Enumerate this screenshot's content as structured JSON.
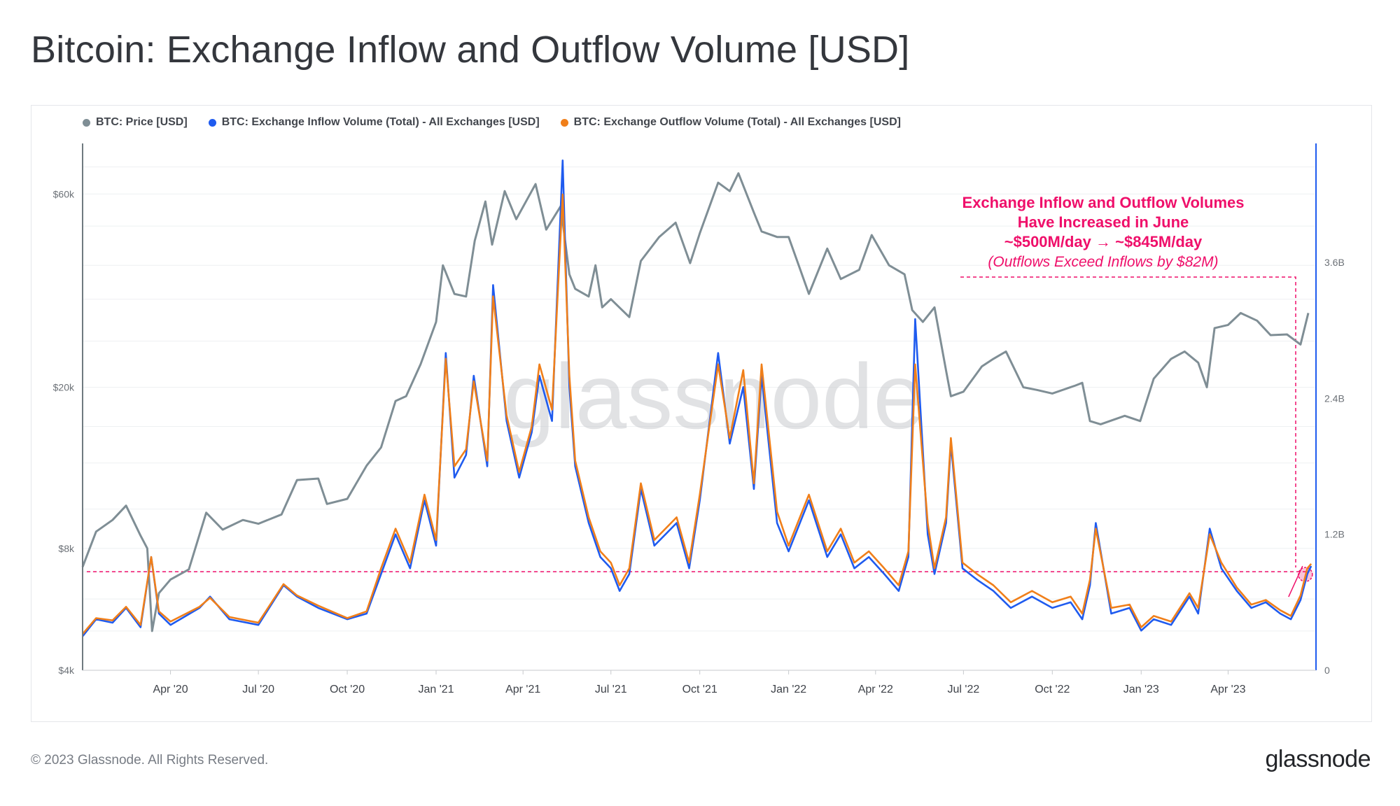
{
  "title": "Bitcoin: Exchange Inflow and Outflow Volume [USD]",
  "legend": [
    {
      "label": "BTC: Price [USD]",
      "color": "#7f8e95"
    },
    {
      "label": "BTC: Exchange Inflow Volume (Total) - All Exchanges [USD]",
      "color": "#1f5bef"
    },
    {
      "label": "BTC: Exchange Outflow Volume (Total) - All Exchanges [USD]",
      "color": "#f07f1a"
    }
  ],
  "annotation": {
    "line1": "Exchange Inflow and Outflow Volumes",
    "line2": "Have Increased in June",
    "line3": "~$500M/day → ~$845M/day",
    "line4": "(Outflows Exceed Inflows by $82M)",
    "color": "#ef0f6a"
  },
  "watermark": "glassnode",
  "footer": {
    "copyright": "© 2023 Glassnode. All Rights Reserved.",
    "logo": "glassnode"
  },
  "chart_data": {
    "type": "line",
    "x_type": "date",
    "xlim": [
      "2020-01-01",
      "2023-07-01"
    ],
    "x_ticks": [
      "Apr '20",
      "Jul '20",
      "Oct '20",
      "Jan '21",
      "Apr '21",
      "Jul '21",
      "Oct '21",
      "Jan '22",
      "Apr '22",
      "Jul '22",
      "Oct '22",
      "Jan '23",
      "Apr '23"
    ],
    "x_tick_dates": [
      "2020-04-01",
      "2020-07-01",
      "2020-10-01",
      "2021-01-01",
      "2021-04-01",
      "2021-07-01",
      "2021-10-01",
      "2022-01-01",
      "2022-04-01",
      "2022-07-01",
      "2022-10-01",
      "2023-01-01",
      "2023-04-01"
    ],
    "y_left": {
      "scale": "log",
      "ticks": [
        "$4k",
        "$8k",
        "$20k",
        "$60k"
      ],
      "tick_values": [
        4000,
        8000,
        20000,
        60000
      ],
      "range": [
        4000,
        80000
      ]
    },
    "y_right": {
      "scale": "linear",
      "ticks": [
        "0",
        "1.2B",
        "2.4B",
        "3.6B"
      ],
      "tick_values": [
        0,
        1200000000,
        2400000000,
        3600000000
      ],
      "range": [
        0,
        4650000000
      ]
    },
    "grid": true,
    "legend_position": "top-left",
    "reference_line_right": 870000000,
    "series": [
      {
        "name": "BTC: Price [USD]",
        "axis": "left",
        "color": "#7f8e95",
        "x": [
          "2020-01-01",
          "2020-01-15",
          "2020-02-01",
          "2020-02-15",
          "2020-03-01",
          "2020-03-08",
          "2020-03-13",
          "2020-03-20",
          "2020-04-01",
          "2020-04-20",
          "2020-05-08",
          "2020-05-25",
          "2020-06-15",
          "2020-07-01",
          "2020-07-25",
          "2020-08-10",
          "2020-09-01",
          "2020-09-10",
          "2020-10-01",
          "2020-10-21",
          "2020-11-05",
          "2020-11-20",
          "2020-12-01",
          "2020-12-16",
          "2021-01-01",
          "2021-01-08",
          "2021-01-20",
          "2021-02-01",
          "2021-02-10",
          "2021-02-21",
          "2021-02-28",
          "2021-03-13",
          "2021-03-25",
          "2021-04-14",
          "2021-04-25",
          "2021-05-10",
          "2021-05-19",
          "2021-05-25",
          "2021-06-08",
          "2021-06-15",
          "2021-06-22",
          "2021-07-01",
          "2021-07-20",
          "2021-08-01",
          "2021-08-20",
          "2021-09-06",
          "2021-09-21",
          "2021-10-01",
          "2021-10-20",
          "2021-11-01",
          "2021-11-10",
          "2021-11-26",
          "2021-12-04",
          "2021-12-20",
          "2022-01-01",
          "2022-01-22",
          "2022-02-10",
          "2022-02-24",
          "2022-03-15",
          "2022-03-28",
          "2022-04-15",
          "2022-05-01",
          "2022-05-09",
          "2022-05-20",
          "2022-06-01",
          "2022-06-13",
          "2022-06-18",
          "2022-07-01",
          "2022-07-20",
          "2022-08-01",
          "2022-08-14",
          "2022-09-01",
          "2022-09-15",
          "2022-10-01",
          "2022-10-25",
          "2022-11-01",
          "2022-11-09",
          "2022-11-20",
          "2022-12-15",
          "2022-12-31",
          "2023-01-14",
          "2023-02-01",
          "2023-02-15",
          "2023-03-01",
          "2023-03-10",
          "2023-03-18",
          "2023-04-01",
          "2023-04-14",
          "2023-05-01",
          "2023-05-15",
          "2023-06-01",
          "2023-06-15",
          "2023-06-23"
        ],
        "values": [
          7200,
          8800,
          9400,
          10200,
          8600,
          8000,
          5000,
          6200,
          6700,
          7100,
          9800,
          8900,
          9400,
          9200,
          9700,
          11800,
          11900,
          10300,
          10600,
          12800,
          14200,
          18500,
          19000,
          22800,
          29000,
          40000,
          34000,
          33500,
          46000,
          57500,
          45000,
          61000,
          52000,
          63500,
          49000,
          56000,
          38000,
          35000,
          33500,
          40000,
          31500,
          33000,
          29800,
          41000,
          47000,
          51000,
          40500,
          48000,
          64000,
          61000,
          67500,
          54000,
          48500,
          47000,
          47000,
          34000,
          44000,
          37000,
          39000,
          47500,
          40000,
          38000,
          31000,
          29000,
          31500,
          22000,
          19000,
          19500,
          22500,
          23500,
          24500,
          20000,
          19700,
          19300,
          20200,
          20500,
          16500,
          16200,
          17000,
          16500,
          21000,
          23500,
          24500,
          23000,
          20000,
          28000,
          28500,
          30500,
          29200,
          26900,
          27000,
          25500,
          30500
        ]
      },
      {
        "name": "BTC: Exchange Inflow Volume (Total) - All Exchanges [USD]",
        "axis": "right",
        "color": "#1f5bef",
        "x": [
          "2020-01-01",
          "2020-01-15",
          "2020-02-01",
          "2020-02-15",
          "2020-03-01",
          "2020-03-12",
          "2020-03-20",
          "2020-04-01",
          "2020-05-01",
          "2020-05-12",
          "2020-06-01",
          "2020-07-01",
          "2020-07-27",
          "2020-08-10",
          "2020-09-01",
          "2020-10-01",
          "2020-10-21",
          "2020-11-05",
          "2020-11-20",
          "2020-12-05",
          "2020-12-20",
          "2021-01-01",
          "2021-01-11",
          "2021-01-20",
          "2021-02-01",
          "2021-02-09",
          "2021-02-23",
          "2021-03-01",
          "2021-03-15",
          "2021-03-28",
          "2021-04-10",
          "2021-04-18",
          "2021-05-01",
          "2021-05-12",
          "2021-05-19",
          "2021-05-25",
          "2021-06-08",
          "2021-06-20",
          "2021-07-01",
          "2021-07-10",
          "2021-07-20",
          "2021-08-01",
          "2021-08-15",
          "2021-09-07",
          "2021-09-20",
          "2021-10-01",
          "2021-10-20",
          "2021-11-01",
          "2021-11-15",
          "2021-11-26",
          "2021-12-04",
          "2021-12-20",
          "2022-01-01",
          "2022-01-22",
          "2022-02-10",
          "2022-02-24",
          "2022-03-10",
          "2022-03-25",
          "2022-04-10",
          "2022-04-25",
          "2022-05-05",
          "2022-05-12",
          "2022-05-25",
          "2022-06-01",
          "2022-06-13",
          "2022-06-18",
          "2022-06-30",
          "2022-07-15",
          "2022-08-01",
          "2022-08-19",
          "2022-09-10",
          "2022-10-01",
          "2022-10-20",
          "2022-11-01",
          "2022-11-09",
          "2022-11-15",
          "2022-12-01",
          "2022-12-20",
          "2023-01-01",
          "2023-01-14",
          "2023-02-01",
          "2023-02-20",
          "2023-03-01",
          "2023-03-13",
          "2023-03-25",
          "2023-04-10",
          "2023-04-25",
          "2023-05-10",
          "2023-05-25",
          "2023-06-05",
          "2023-06-15",
          "2023-06-22",
          "2023-06-26"
        ],
        "values": [
          300000000,
          450000000,
          420000000,
          550000000,
          380000000,
          1000000000,
          500000000,
          400000000,
          550000000,
          650000000,
          450000000,
          400000000,
          750000000,
          650000000,
          550000000,
          450000000,
          500000000,
          850000000,
          1200000000,
          900000000,
          1500000000,
          1100000000,
          2800000000,
          1700000000,
          1900000000,
          2600000000,
          1800000000,
          3400000000,
          2200000000,
          1700000000,
          2100000000,
          2600000000,
          2200000000,
          4500000000,
          2500000000,
          1800000000,
          1300000000,
          1000000000,
          900000000,
          700000000,
          850000000,
          1600000000,
          1100000000,
          1300000000,
          900000000,
          1500000000,
          2800000000,
          2000000000,
          2500000000,
          1600000000,
          2600000000,
          1300000000,
          1050000000,
          1500000000,
          1000000000,
          1200000000,
          900000000,
          1000000000,
          850000000,
          700000000,
          1000000000,
          3100000000,
          1200000000,
          850000000,
          1300000000,
          2000000000,
          900000000,
          800000000,
          700000000,
          550000000,
          650000000,
          550000000,
          600000000,
          450000000,
          750000000,
          1300000000,
          500000000,
          550000000,
          350000000,
          450000000,
          400000000,
          650000000,
          500000000,
          1250000000,
          900000000,
          700000000,
          550000000,
          600000000,
          500000000,
          450000000,
          620000000,
          850000000,
          920000000
        ]
      },
      {
        "name": "BTC: Exchange Outflow Volume (Total) - All Exchanges [USD]",
        "axis": "right",
        "color": "#f07f1a",
        "x": [
          "2020-01-01",
          "2020-01-15",
          "2020-02-01",
          "2020-02-15",
          "2020-03-01",
          "2020-03-12",
          "2020-03-20",
          "2020-04-01",
          "2020-05-01",
          "2020-05-12",
          "2020-06-01",
          "2020-07-01",
          "2020-07-27",
          "2020-08-10",
          "2020-09-01",
          "2020-10-01",
          "2020-10-21",
          "2020-11-05",
          "2020-11-20",
          "2020-12-05",
          "2020-12-20",
          "2021-01-01",
          "2021-01-11",
          "2021-01-20",
          "2021-02-01",
          "2021-02-09",
          "2021-02-23",
          "2021-03-01",
          "2021-03-15",
          "2021-03-28",
          "2021-04-10",
          "2021-04-18",
          "2021-05-01",
          "2021-05-12",
          "2021-05-19",
          "2021-05-25",
          "2021-06-08",
          "2021-06-20",
          "2021-07-01",
          "2021-07-10",
          "2021-07-20",
          "2021-08-01",
          "2021-08-15",
          "2021-09-07",
          "2021-09-20",
          "2021-10-01",
          "2021-10-20",
          "2021-11-01",
          "2021-11-15",
          "2021-11-26",
          "2021-12-04",
          "2021-12-20",
          "2022-01-01",
          "2022-01-22",
          "2022-02-10",
          "2022-02-24",
          "2022-03-10",
          "2022-03-25",
          "2022-04-10",
          "2022-04-25",
          "2022-05-05",
          "2022-05-12",
          "2022-05-25",
          "2022-06-01",
          "2022-06-13",
          "2022-06-18",
          "2022-06-30",
          "2022-07-15",
          "2022-08-01",
          "2022-08-19",
          "2022-09-10",
          "2022-10-01",
          "2022-10-20",
          "2022-11-01",
          "2022-11-09",
          "2022-11-15",
          "2022-12-01",
          "2022-12-20",
          "2023-01-01",
          "2023-01-14",
          "2023-02-01",
          "2023-02-20",
          "2023-03-01",
          "2023-03-13",
          "2023-03-25",
          "2023-04-10",
          "2023-04-25",
          "2023-05-10",
          "2023-05-25",
          "2023-06-05",
          "2023-06-15",
          "2023-06-22",
          "2023-06-26"
        ],
        "values": [
          320000000,
          460000000,
          440000000,
          560000000,
          400000000,
          1000000000,
          520000000,
          430000000,
          560000000,
          640000000,
          470000000,
          420000000,
          760000000,
          660000000,
          570000000,
          460000000,
          520000000,
          900000000,
          1250000000,
          950000000,
          1550000000,
          1150000000,
          2750000000,
          1800000000,
          1950000000,
          2550000000,
          1850000000,
          3300000000,
          2250000000,
          1750000000,
          2150000000,
          2700000000,
          2300000000,
          4200000000,
          2600000000,
          1850000000,
          1350000000,
          1050000000,
          950000000,
          750000000,
          900000000,
          1650000000,
          1150000000,
          1350000000,
          950000000,
          1550000000,
          2700000000,
          2050000000,
          2650000000,
          1650000000,
          2700000000,
          1400000000,
          1100000000,
          1550000000,
          1050000000,
          1250000000,
          950000000,
          1050000000,
          900000000,
          750000000,
          1050000000,
          2700000000,
          1300000000,
          900000000,
          1350000000,
          2050000000,
          950000000,
          850000000,
          750000000,
          600000000,
          700000000,
          600000000,
          650000000,
          500000000,
          800000000,
          1250000000,
          550000000,
          580000000,
          380000000,
          480000000,
          430000000,
          680000000,
          550000000,
          1200000000,
          950000000,
          730000000,
          580000000,
          620000000,
          530000000,
          480000000,
          660000000,
          900000000,
          940000000
        ]
      }
    ]
  }
}
